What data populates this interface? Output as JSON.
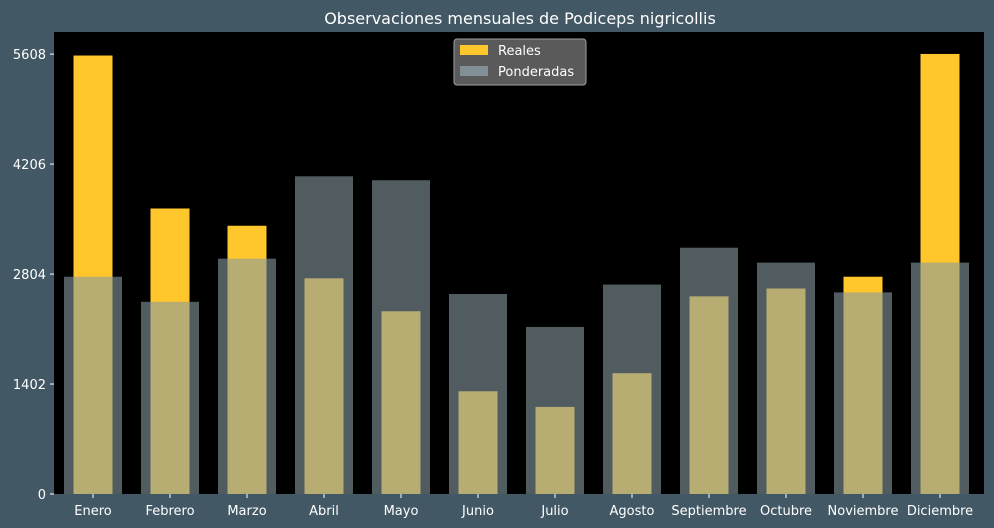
{
  "chart_data": {
    "type": "bar",
    "title": "Observaciones mensuales de Podiceps nigricollis",
    "xlabel": "",
    "ylabel": "",
    "categories": [
      "Enero",
      "Febrero",
      "Marzo",
      "Abril",
      "Mayo",
      "Junio",
      "Julio",
      "Agosto",
      "Septiembre",
      "Octubre",
      "Noviembre",
      "Diciembre"
    ],
    "series": [
      {
        "name": "Reales",
        "color": "#ffc72c",
        "values": [
          5590,
          3640,
          3420,
          2750,
          2330,
          1310,
          1110,
          1540,
          2520,
          2620,
          2770,
          5610
        ]
      },
      {
        "name": "Ponderadas",
        "color": "#879aa1",
        "values": [
          2770,
          2450,
          3000,
          4050,
          4000,
          2550,
          2130,
          2670,
          3140,
          2950,
          2570,
          2950
        ]
      }
    ],
    "ylim": [
      0,
      5890
    ],
    "yticks": [
      0,
      1402,
      2804,
      4206,
      5608
    ],
    "ytick_labels": [
      "0",
      "1402",
      "2804",
      "4206",
      "5608"
    ],
    "grid": false,
    "legend": {
      "position": "top-center",
      "entries": [
        "Reales",
        "Ponderadas"
      ]
    },
    "colors": {
      "background": "#425865",
      "plot_area": "#000000",
      "text": "#ffffff"
    }
  }
}
